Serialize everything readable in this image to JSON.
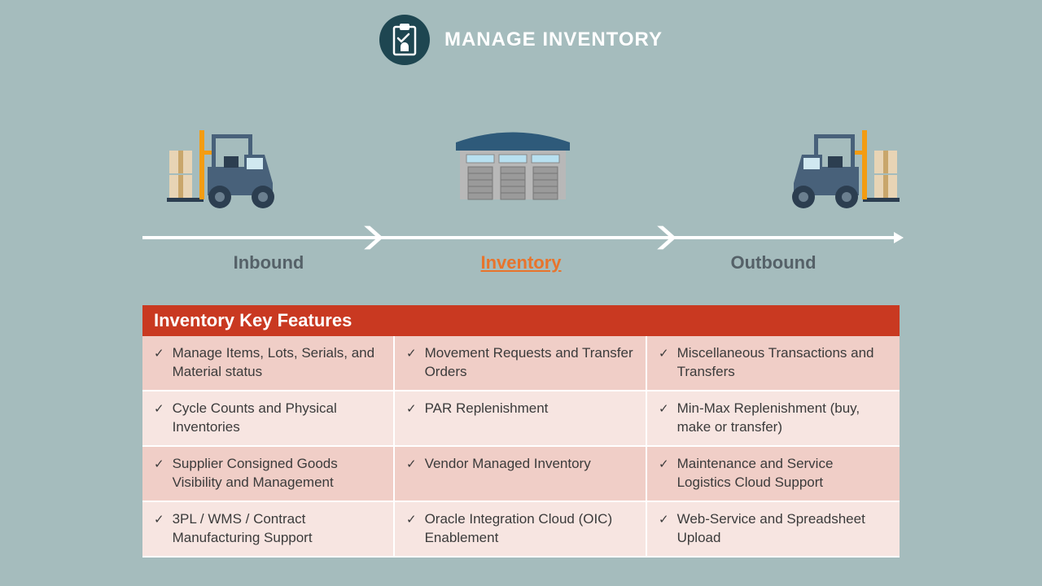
{
  "header": {
    "title": "MANAGE INVENTORY",
    "icon_bg": "#1e4651",
    "title_color": "#ffffff"
  },
  "background_color": "#a5bcbd",
  "flow": {
    "labels": [
      "Inbound",
      "Inventory",
      "Outbound"
    ],
    "active_index": 1,
    "label_color": "#556168",
    "active_color": "#e8742c",
    "line_color": "#ffffff"
  },
  "features": {
    "title": "Inventory Key Features",
    "header_bg": "#c93921",
    "header_text_color": "#ffffff",
    "row_colors": [
      "#f0cec7",
      "#f7e5e1",
      "#f0cec7",
      "#f7e5e1"
    ],
    "checkmark": "✓",
    "rows": [
      [
        "Manage Items, Lots, Serials, and Material status",
        "Movement Requests and Transfer Orders",
        "Miscellaneous Transactions and Transfers"
      ],
      [
        "Cycle Counts and Physical Inventories",
        "PAR Replenishment",
        "Min-Max Replenishment (buy, make or transfer)"
      ],
      [
        "Supplier Consigned Goods Visibility and Management",
        "Vendor Managed Inventory",
        "Maintenance and Service Logistics Cloud Support"
      ],
      [
        "3PL / WMS / Contract Manufacturing Support",
        "Oracle Integration Cloud (OIC) Enablement",
        "Web-Service and Spreadsheet Upload"
      ]
    ]
  },
  "icons": {
    "forklift_body": "#48617a",
    "forklift_wheel": "#2c3e50",
    "forklift_mast": "#f39c12",
    "box_color": "#e8d4b5",
    "box_tape": "#c9a66b",
    "warehouse_roof": "#2e5a7a",
    "warehouse_wall": "#b8b8b8",
    "warehouse_door": "#9a9a9a",
    "warehouse_window": "#b8e0f0"
  }
}
